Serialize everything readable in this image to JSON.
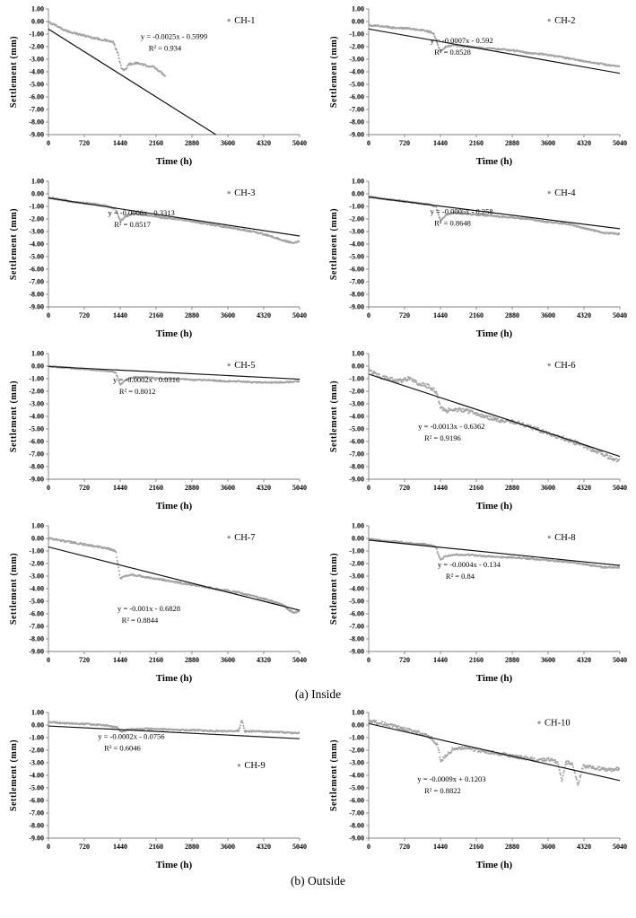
{
  "page": {
    "background": "#ffffff"
  },
  "captions": {
    "inside": "(a) Inside",
    "outside": "(b) Outside"
  },
  "colors": {
    "series": "#9b9b9b",
    "trend": "#141414",
    "axis": "#808080",
    "tick_text": "#000000"
  },
  "axes": {
    "xlabel": "Time (h)",
    "ylabel": "Settlement (mm)",
    "xlim": [
      0,
      5040
    ],
    "ylim": [
      -9,
      1
    ],
    "xticks": [
      0,
      720,
      1440,
      2160,
      2880,
      3600,
      4320,
      5040
    ],
    "ytick_labels": [
      "1.00",
      "0.00",
      "-1.00",
      "-2.00",
      "-3.00",
      "-4.00",
      "-5.00",
      "-6.00",
      "-7.00",
      "-8.00",
      "-9.00"
    ],
    "grid": false,
    "legend_position": "top-right-inside"
  },
  "chart_data": [
    {
      "id": "ch-1",
      "type": "scatter",
      "label": "CH-1",
      "group": "inside",
      "trend": {
        "slope": -0.0025,
        "intercept": -0.5999,
        "equation": "y = -0.0025x  - 0.5999",
        "r2_text": "R² = 0.934",
        "r2": 0.934
      },
      "eq_pos": [
        0.5,
        0.24
      ],
      "legend_pos": [
        0.74,
        0.07
      ],
      "noise": 0.07,
      "points": [
        [
          0,
          -0.05
        ],
        [
          150,
          -0.3
        ],
        [
          350,
          -0.75
        ],
        [
          600,
          -1.0
        ],
        [
          900,
          -1.3
        ],
        [
          1150,
          -1.5
        ],
        [
          1300,
          -1.65
        ],
        [
          1400,
          -2.6
        ],
        [
          1460,
          -3.7
        ],
        [
          1520,
          -3.9
        ],
        [
          1620,
          -3.4
        ],
        [
          1780,
          -3.3
        ],
        [
          1950,
          -3.5
        ],
        [
          2100,
          -3.6
        ],
        [
          2250,
          -4.0
        ],
        [
          2350,
          -4.35
        ]
      ]
    },
    {
      "id": "ch-2",
      "type": "scatter",
      "label": "CH-2",
      "group": "inside",
      "trend": {
        "slope": -0.0007,
        "intercept": -0.592,
        "equation": "y = -0.0007x - 0.592",
        "r2_text": "R² = 0.8528",
        "r2": 0.8528
      },
      "eq_pos": [
        0.37,
        0.27
      ],
      "legend_pos": [
        0.74,
        0.07
      ],
      "noise": 0.06,
      "points": [
        [
          0,
          -0.3
        ],
        [
          200,
          -0.35
        ],
        [
          500,
          -0.5
        ],
        [
          800,
          -0.55
        ],
        [
          1100,
          -0.7
        ],
        [
          1300,
          -0.9
        ],
        [
          1440,
          -2.4
        ],
        [
          1550,
          -2.0
        ],
        [
          1700,
          -1.9
        ],
        [
          2000,
          -2.0
        ],
        [
          2300,
          -2.1
        ],
        [
          2600,
          -2.2
        ],
        [
          2900,
          -2.3
        ],
        [
          3200,
          -2.5
        ],
        [
          3500,
          -2.6
        ],
        [
          3800,
          -2.8
        ],
        [
          4100,
          -3.0
        ],
        [
          4400,
          -3.2
        ],
        [
          4700,
          -3.4
        ],
        [
          5040,
          -3.6
        ]
      ]
    },
    {
      "id": "ch-3",
      "type": "scatter",
      "label": "CH-3",
      "group": "inside",
      "trend": {
        "slope": -0.0006,
        "intercept": -0.3313,
        "equation": "y = -0.0006x - 0.3313",
        "r2_text": "R² = 0.8517",
        "r2": 0.8517
      },
      "eq_pos": [
        0.37,
        0.27
      ],
      "legend_pos": [
        0.74,
        0.07
      ],
      "noise": 0.06,
      "points": [
        [
          0,
          -0.3
        ],
        [
          300,
          -0.5
        ],
        [
          600,
          -0.7
        ],
        [
          900,
          -0.8
        ],
        [
          1200,
          -1.0
        ],
        [
          1350,
          -1.2
        ],
        [
          1440,
          -2.2
        ],
        [
          1550,
          -1.8
        ],
        [
          1700,
          -1.6
        ],
        [
          2000,
          -1.7
        ],
        [
          2300,
          -1.9
        ],
        [
          2600,
          -2.0
        ],
        [
          2900,
          -2.2
        ],
        [
          3200,
          -2.4
        ],
        [
          3500,
          -2.6
        ],
        [
          3800,
          -2.8
        ],
        [
          4100,
          -3.0
        ],
        [
          4400,
          -3.3
        ],
        [
          4700,
          -3.7
        ],
        [
          4900,
          -3.9
        ],
        [
          5040,
          -3.8
        ]
      ]
    },
    {
      "id": "ch-4",
      "type": "scatter",
      "label": "CH-4",
      "group": "inside",
      "trend": {
        "slope": -0.0005,
        "intercept": -0.258,
        "equation": "y = -0.0005x  - 0.258",
        "r2_text": "R² = 0.8648",
        "r2": 0.8648
      },
      "eq_pos": [
        0.37,
        0.26
      ],
      "legend_pos": [
        0.74,
        0.07
      ],
      "noise": 0.06,
      "points": [
        [
          0,
          -0.2
        ],
        [
          300,
          -0.4
        ],
        [
          600,
          -0.55
        ],
        [
          900,
          -0.7
        ],
        [
          1200,
          -0.85
        ],
        [
          1350,
          -1.0
        ],
        [
          1440,
          -2.1
        ],
        [
          1550,
          -1.7
        ],
        [
          1700,
          -1.5
        ],
        [
          2000,
          -1.6
        ],
        [
          2300,
          -1.7
        ],
        [
          2600,
          -1.8
        ],
        [
          2900,
          -1.9
        ],
        [
          3200,
          -2.0
        ],
        [
          3500,
          -2.2
        ],
        [
          3800,
          -2.3
        ],
        [
          4100,
          -2.5
        ],
        [
          4400,
          -2.8
        ],
        [
          4700,
          -3.1
        ],
        [
          5040,
          -3.2
        ]
      ]
    },
    {
      "id": "ch-5",
      "type": "scatter",
      "label": "CH-5",
      "group": "inside",
      "trend": {
        "slope": -0.0002,
        "intercept": -0.0316,
        "equation": "y = -0.0002x - 0.0316",
        "r2_text": "R² = 0.8012",
        "r2": 0.8012
      },
      "eq_pos": [
        0.39,
        0.23
      ],
      "legend_pos": [
        0.74,
        0.07
      ],
      "noise": 0.05,
      "points": [
        [
          0,
          0.0
        ],
        [
          300,
          -0.1
        ],
        [
          600,
          -0.2
        ],
        [
          900,
          -0.3
        ],
        [
          1200,
          -0.4
        ],
        [
          1350,
          -0.5
        ],
        [
          1440,
          -1.5
        ],
        [
          1550,
          -1.1
        ],
        [
          1700,
          -0.9
        ],
        [
          2000,
          -0.9
        ],
        [
          2300,
          -1.0
        ],
        [
          2600,
          -1.0
        ],
        [
          2900,
          -1.1
        ],
        [
          3200,
          -1.1
        ],
        [
          3500,
          -1.2
        ],
        [
          3800,
          -1.2
        ],
        [
          4100,
          -1.3
        ],
        [
          4400,
          -1.3
        ],
        [
          4700,
          -1.3
        ],
        [
          5040,
          -1.2
        ]
      ]
    },
    {
      "id": "ch-6",
      "type": "scatter",
      "label": "CH-6",
      "group": "inside",
      "trend": {
        "slope": -0.0013,
        "intercept": -0.6362,
        "equation": "y = -0.0013x  - 0.6362",
        "r2_text": "R² = 0.9196",
        "r2": 0.9196
      },
      "eq_pos": [
        0.33,
        0.6
      ],
      "legend_pos": [
        0.74,
        0.07
      ],
      "noise": 0.16,
      "points": [
        [
          0,
          -0.3
        ],
        [
          200,
          -0.8
        ],
        [
          400,
          -1.0
        ],
        [
          600,
          -1.2
        ],
        [
          800,
          -1.0
        ],
        [
          1000,
          -1.4
        ],
        [
          1200,
          -1.6
        ],
        [
          1350,
          -2.0
        ],
        [
          1440,
          -3.3
        ],
        [
          1550,
          -3.6
        ],
        [
          1700,
          -3.4
        ],
        [
          2000,
          -3.6
        ],
        [
          2300,
          -4.0
        ],
        [
          2600,
          -4.3
        ],
        [
          2900,
          -4.4
        ],
        [
          3200,
          -4.8
        ],
        [
          3500,
          -5.2
        ],
        [
          3800,
          -5.6
        ],
        [
          4100,
          -6.0
        ],
        [
          4400,
          -6.5
        ],
        [
          4700,
          -7.0
        ],
        [
          4900,
          -7.4
        ],
        [
          5040,
          -7.5
        ]
      ]
    },
    {
      "id": "ch-7",
      "type": "scatter",
      "label": "CH-7",
      "group": "inside",
      "trend": {
        "slope": -0.001,
        "intercept": -0.6828,
        "equation": "y = -0.001x  - 0.6828",
        "r2_text": "R² = 0.8844",
        "r2": 0.8844
      },
      "eq_pos": [
        0.4,
        0.68
      ],
      "legend_pos": [
        0.74,
        0.07
      ],
      "noise": 0.07,
      "points": [
        [
          0,
          0.0
        ],
        [
          300,
          -0.2
        ],
        [
          600,
          -0.4
        ],
        [
          900,
          -0.6
        ],
        [
          1200,
          -0.8
        ],
        [
          1350,
          -1.0
        ],
        [
          1440,
          -3.2
        ],
        [
          1550,
          -3.0
        ],
        [
          1700,
          -2.9
        ],
        [
          2000,
          -3.1
        ],
        [
          2300,
          -3.3
        ],
        [
          2600,
          -3.5
        ],
        [
          2900,
          -3.7
        ],
        [
          3200,
          -3.9
        ],
        [
          3500,
          -4.1
        ],
        [
          3800,
          -4.3
        ],
        [
          4100,
          -4.6
        ],
        [
          4400,
          -4.9
        ],
        [
          4700,
          -5.3
        ],
        [
          4900,
          -5.9
        ],
        [
          5040,
          -5.8
        ]
      ]
    },
    {
      "id": "ch-8",
      "type": "scatter",
      "label": "CH-8",
      "group": "inside",
      "trend": {
        "slope": -0.0004,
        "intercept": -0.134,
        "equation": "y = -0.0004x  - 0.134",
        "r2_text": "R² = 0.84",
        "r2": 0.84
      },
      "eq_pos": [
        0.4,
        0.33
      ],
      "legend_pos": [
        0.74,
        0.07
      ],
      "noise": 0.06,
      "points": [
        [
          0,
          -0.05
        ],
        [
          300,
          -0.2
        ],
        [
          600,
          -0.3
        ],
        [
          900,
          -0.4
        ],
        [
          1200,
          -0.5
        ],
        [
          1350,
          -0.7
        ],
        [
          1440,
          -1.7
        ],
        [
          1550,
          -1.4
        ],
        [
          1700,
          -1.3
        ],
        [
          2000,
          -1.3
        ],
        [
          2300,
          -1.4
        ],
        [
          2600,
          -1.5
        ],
        [
          2900,
          -1.5
        ],
        [
          3200,
          -1.6
        ],
        [
          3500,
          -1.7
        ],
        [
          3800,
          -1.8
        ],
        [
          4100,
          -1.9
        ],
        [
          4400,
          -2.1
        ],
        [
          4700,
          -2.3
        ],
        [
          5040,
          -2.3
        ]
      ]
    },
    {
      "id": "ch-9",
      "type": "scatter",
      "label": "CH-9",
      "group": "outside",
      "trend": {
        "slope": -0.0002,
        "intercept": -0.0756,
        "equation": "y = -0.0002x - 0.0756",
        "r2_text": "R² = 0.6046",
        "r2": 0.6046
      },
      "eq_pos": [
        0.33,
        0.21
      ],
      "legend_pos": [
        0.78,
        0.4
      ],
      "noise": 0.06,
      "points": [
        [
          0,
          0.25
        ],
        [
          300,
          0.15
        ],
        [
          600,
          0.1
        ],
        [
          900,
          0.05
        ],
        [
          1200,
          -0.05
        ],
        [
          1380,
          -0.2
        ],
        [
          1450,
          -0.55
        ],
        [
          1600,
          -0.35
        ],
        [
          2000,
          -0.3
        ],
        [
          2400,
          -0.35
        ],
        [
          2800,
          -0.4
        ],
        [
          3200,
          -0.45
        ],
        [
          3600,
          -0.5
        ],
        [
          3820,
          -0.45
        ],
        [
          3880,
          0.45
        ],
        [
          3940,
          -0.5
        ],
        [
          4200,
          -0.5
        ],
        [
          4500,
          -0.55
        ],
        [
          4800,
          -0.6
        ],
        [
          5040,
          -0.65
        ]
      ]
    },
    {
      "id": "ch-10",
      "type": "scatter",
      "label": "CH-10",
      "group": "outside",
      "trend": {
        "slope": -0.0009,
        "intercept": 0.1203,
        "equation": "y = -0.0009x  + 0.1203",
        "r2_text": "R² = 0.8822",
        "r2": 0.8822
      },
      "eq_pos": [
        0.33,
        0.55
      ],
      "legend_pos": [
        0.7,
        0.06
      ],
      "noise": 0.14,
      "points": [
        [
          0,
          0.3
        ],
        [
          200,
          0.2
        ],
        [
          400,
          0.0
        ],
        [
          700,
          -0.3
        ],
        [
          1000,
          -0.6
        ],
        [
          1250,
          -1.0
        ],
        [
          1380,
          -1.6
        ],
        [
          1450,
          -2.9
        ],
        [
          1550,
          -2.4
        ],
        [
          1700,
          -1.9
        ],
        [
          1900,
          -1.8
        ],
        [
          2200,
          -2.0
        ],
        [
          2500,
          -2.2
        ],
        [
          2800,
          -2.4
        ],
        [
          3100,
          -2.6
        ],
        [
          3400,
          -2.8
        ],
        [
          3600,
          -2.7
        ],
        [
          3800,
          -3.0
        ],
        [
          3880,
          -4.4
        ],
        [
          3960,
          -2.9
        ],
        [
          4100,
          -3.2
        ],
        [
          4200,
          -4.7
        ],
        [
          4300,
          -3.3
        ],
        [
          4500,
          -3.4
        ],
        [
          4700,
          -3.5
        ],
        [
          4900,
          -3.6
        ],
        [
          5040,
          -3.4
        ]
      ]
    }
  ]
}
